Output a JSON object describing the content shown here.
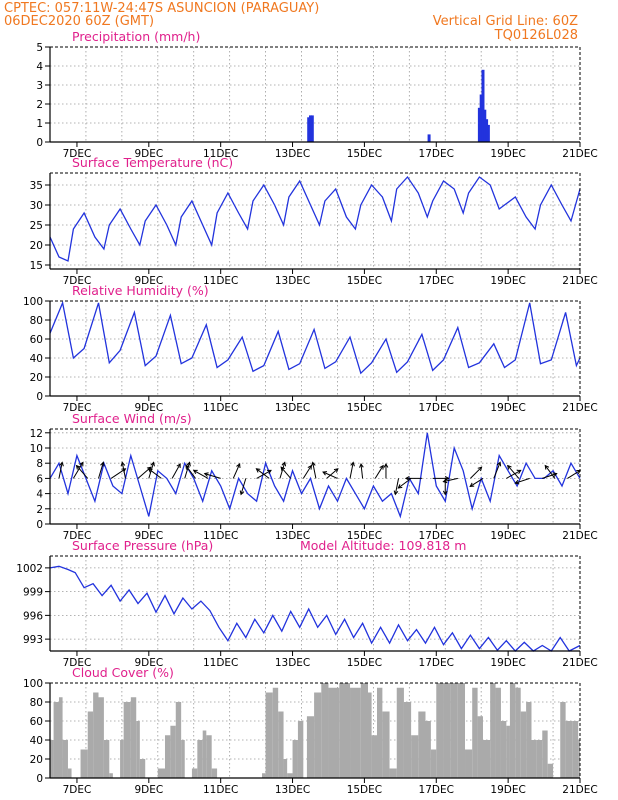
{
  "header": {
    "line1": "CPTEC:   057:11W-24:47S   ASUNCION (PARAGUAY)",
    "line2_left": "06DEC2020 60Z (GMT)",
    "line2_right": "Vertical Grid Line: 60Z",
    "line3_right": "TQ0126L028"
  },
  "colors": {
    "series": "#2233dd",
    "cloud_fill": "#aaaaaa",
    "header": "#f07820",
    "title": "#e0208c"
  },
  "chart_data": [
    {
      "id": "precip",
      "type": "bar",
      "title": "Precipitation (mm/h)",
      "x_unit": "day of December 2020",
      "xlim": [
        6.25,
        21
      ],
      "ylim": [
        0,
        5
      ],
      "yticks": [
        "0",
        "1",
        "2",
        "3",
        "4",
        "5"
      ],
      "xticks": [
        "7DEC",
        "9DEC",
        "11DEC",
        "13DEC",
        "15DEC",
        "17DEC",
        "19DEC",
        "21DEC"
      ],
      "x": [
        13.45,
        13.5,
        13.55,
        16.8,
        18.2,
        18.25,
        18.3,
        18.35,
        18.4,
        18.45
      ],
      "values": [
        1.3,
        1.4,
        1.4,
        0.4,
        1.8,
        2.5,
        3.8,
        1.7,
        1.2,
        0.9
      ]
    },
    {
      "id": "temp",
      "type": "line",
      "title": "Surface Temperature (nC)",
      "x_unit": "day of December 2020",
      "xlim": [
        6.25,
        21
      ],
      "ylim": [
        14,
        38
      ],
      "yticks": [
        "15",
        "20",
        "25",
        "30",
        "35"
      ],
      "xticks": [
        "7DEC",
        "9DEC",
        "11DEC",
        "13DEC",
        "15DEC",
        "17DEC",
        "19DEC",
        "21DEC"
      ],
      "x": [
        6.25,
        6.5,
        6.75,
        6.9,
        7.2,
        7.5,
        7.75,
        7.9,
        8.2,
        8.5,
        8.75,
        8.9,
        9.2,
        9.5,
        9.75,
        9.9,
        10.2,
        10.5,
        10.75,
        10.9,
        11.2,
        11.5,
        11.75,
        11.9,
        12.2,
        12.5,
        12.75,
        12.9,
        13.2,
        13.5,
        13.75,
        13.9,
        14.2,
        14.5,
        14.75,
        14.9,
        15.2,
        15.5,
        15.75,
        15.9,
        16.2,
        16.5,
        16.75,
        16.9,
        17.2,
        17.5,
        17.75,
        17.9,
        18.2,
        18.5,
        18.75,
        18.9,
        19.2,
        19.5,
        19.75,
        19.9,
        20.2,
        20.5,
        20.75,
        21
      ],
      "values": [
        22,
        17,
        16,
        24,
        28,
        22,
        19,
        25,
        29,
        24,
        20,
        26,
        30,
        25,
        20,
        27,
        31,
        25,
        20,
        28,
        33,
        28,
        24,
        31,
        35,
        30,
        25,
        32,
        36,
        30,
        25,
        31,
        34,
        27,
        24,
        30,
        35,
        32,
        26,
        34,
        37,
        33,
        27,
        31,
        36,
        34,
        28,
        33,
        37,
        35,
        29,
        30,
        32,
        27,
        24,
        30,
        35,
        30,
        26,
        34
      ]
    },
    {
      "id": "rh",
      "type": "line",
      "title": "Relative Humidity (%)",
      "x_unit": "day of December 2020",
      "xlim": [
        6.25,
        21
      ],
      "ylim": [
        0,
        100
      ],
      "yticks": [
        "0",
        "20",
        "40",
        "60",
        "80",
        "100"
      ],
      "xticks": [
        "7DEC",
        "9DEC",
        "11DEC",
        "13DEC",
        "15DEC",
        "17DEC",
        "19DEC",
        "21DEC"
      ],
      "x": [
        6.25,
        6.6,
        6.9,
        7.2,
        7.6,
        7.9,
        8.2,
        8.6,
        8.9,
        9.2,
        9.6,
        9.9,
        10.2,
        10.6,
        10.9,
        11.2,
        11.6,
        11.9,
        12.2,
        12.6,
        12.9,
        13.2,
        13.6,
        13.9,
        14.2,
        14.6,
        14.9,
        15.2,
        15.6,
        15.9,
        16.2,
        16.6,
        16.9,
        17.2,
        17.6,
        17.9,
        18.2,
        18.6,
        18.9,
        19.2,
        19.6,
        19.9,
        20.2,
        20.6,
        20.9,
        21
      ],
      "values": [
        66,
        98,
        40,
        50,
        98,
        35,
        48,
        88,
        32,
        42,
        85,
        34,
        40,
        75,
        30,
        38,
        62,
        26,
        32,
        68,
        28,
        34,
        70,
        29,
        36,
        62,
        24,
        35,
        60,
        25,
        36,
        65,
        27,
        38,
        72,
        30,
        35,
        55,
        30,
        38,
        98,
        34,
        38,
        88,
        32,
        40
      ]
    },
    {
      "id": "wind",
      "type": "line",
      "title": "Surface Wind (m/s)",
      "x_unit": "day of December 2020",
      "xlim": [
        6.25,
        21
      ],
      "ylim": [
        0,
        12.5
      ],
      "yticks": [
        "0",
        "2",
        "4",
        "6",
        "8",
        "10",
        "12"
      ],
      "xticks": [
        "7DEC",
        "9DEC",
        "11DEC",
        "13DEC",
        "15DEC",
        "17DEC",
        "19DEC",
        "21DEC"
      ],
      "x": [
        6.25,
        6.5,
        6.75,
        7.0,
        7.25,
        7.5,
        7.75,
        8.0,
        8.25,
        8.5,
        8.75,
        9.0,
        9.25,
        9.5,
        9.75,
        10.0,
        10.25,
        10.5,
        10.75,
        11.0,
        11.25,
        11.5,
        11.75,
        12.0,
        12.25,
        12.5,
        12.75,
        13.0,
        13.25,
        13.5,
        13.75,
        14.0,
        14.25,
        14.5,
        14.75,
        15.0,
        15.25,
        15.5,
        15.75,
        16.0,
        16.25,
        16.5,
        16.75,
        17.0,
        17.25,
        17.5,
        17.75,
        18.0,
        18.25,
        18.5,
        18.75,
        19.0,
        19.25,
        19.5,
        19.75,
        20.0,
        20.25,
        20.5,
        20.75,
        21.0
      ],
      "values": [
        6,
        8,
        4,
        9,
        6,
        3,
        8,
        5,
        4,
        9,
        5,
        1,
        7,
        6,
        4,
        8,
        6,
        3,
        7,
        5,
        2,
        6,
        4,
        3,
        8,
        5,
        3,
        7,
        4,
        6,
        2,
        5,
        3,
        6,
        4,
        2,
        5,
        3,
        4,
        1,
        6,
        4,
        12,
        5,
        3,
        10,
        7,
        2,
        6,
        3,
        9,
        7,
        5,
        8,
        6,
        6,
        7,
        5,
        8,
        6
      ],
      "arrows_note": "wind direction vectors",
      "arrows": [
        [
          6.5,
          0.2,
          1
        ],
        [
          6.9,
          0.6,
          1
        ],
        [
          7.3,
          -0.7,
          0.8
        ],
        [
          7.6,
          0.3,
          1
        ],
        [
          7.95,
          0.9,
          0.6
        ],
        [
          8.35,
          -0.2,
          1
        ],
        [
          8.7,
          0.8,
          0.7
        ],
        [
          9.0,
          0.3,
          1
        ],
        [
          9.35,
          -0.8,
          0.6
        ],
        [
          9.65,
          0.5,
          0.9
        ],
        [
          10.0,
          0.3,
          1
        ],
        [
          10.3,
          -0.6,
          0.8
        ],
        [
          10.65,
          -0.9,
          0.5
        ],
        [
          11.0,
          -1,
          0.3
        ],
        [
          11.35,
          0.4,
          0.9
        ],
        [
          11.7,
          -0.3,
          -1
        ],
        [
          12.0,
          0.9,
          0.5
        ],
        [
          12.35,
          -0.8,
          0.6
        ],
        [
          12.65,
          0.3,
          1
        ],
        [
          12.95,
          -0.6,
          0.7
        ],
        [
          13.3,
          0.5,
          0.8
        ],
        [
          13.65,
          -0.2,
          1
        ],
        [
          13.95,
          0.7,
          0.6
        ],
        [
          14.25,
          -0.9,
          0.4
        ],
        [
          14.6,
          0.2,
          1
        ],
        [
          14.95,
          -0.1,
          0.9
        ],
        [
          15.3,
          0.5,
          0.8
        ],
        [
          15.6,
          0,
          0.9
        ],
        [
          15.95,
          -0.2,
          -1
        ],
        [
          16.3,
          -0.8,
          -0.6
        ],
        [
          16.6,
          -1,
          0
        ],
        [
          16.9,
          1,
          0
        ],
        [
          17.25,
          0,
          -1
        ],
        [
          17.6,
          -0.9,
          -0.2
        ],
        [
          17.95,
          0.7,
          0.7
        ],
        [
          18.3,
          -0.8,
          -0.5
        ],
        [
          18.6,
          0.4,
          1
        ],
        [
          18.95,
          0.9,
          0.5
        ],
        [
          19.3,
          -0.7,
          0.8
        ],
        [
          19.6,
          -0.9,
          -0.3
        ],
        [
          19.95,
          0.9,
          0.3
        ],
        [
          20.3,
          -0.6,
          0.8
        ],
        [
          20.65,
          0.8,
          0.5
        ]
      ]
    },
    {
      "id": "pressure",
      "type": "line",
      "title": "Surface Pressure (hPa)",
      "annotation": "Model Altitude: 109.818 m",
      "x_unit": "day of December 2020",
      "xlim": [
        6.25,
        21
      ],
      "ylim": [
        991.5,
        1003.5
      ],
      "yticks": [
        "993",
        "996",
        "999",
        "1002"
      ],
      "xticks": [
        "7DEC",
        "9DEC",
        "11DEC",
        "13DEC",
        "15DEC",
        "17DEC",
        "19DEC",
        "21DEC"
      ],
      "x": [
        6.25,
        6.5,
        6.75,
        6.95,
        7.2,
        7.45,
        7.7,
        7.95,
        8.2,
        8.45,
        8.7,
        8.95,
        9.2,
        9.45,
        9.7,
        9.95,
        10.2,
        10.45,
        10.7,
        10.95,
        11.2,
        11.45,
        11.7,
        11.95,
        12.2,
        12.45,
        12.7,
        12.95,
        13.2,
        13.45,
        13.7,
        13.95,
        14.2,
        14.45,
        14.7,
        14.95,
        15.2,
        15.45,
        15.7,
        15.95,
        16.2,
        16.45,
        16.7,
        16.95,
        17.2,
        17.45,
        17.7,
        17.95,
        18.2,
        18.45,
        18.7,
        18.95,
        19.2,
        19.45,
        19.7,
        19.95,
        20.2,
        20.45,
        20.7,
        21.0
      ],
      "values": [
        1002,
        1002.2,
        1001.8,
        1001.4,
        999.5,
        1000,
        998.5,
        999.8,
        997.8,
        999.2,
        997.5,
        998.8,
        996.4,
        998.5,
        996.2,
        998.2,
        996.8,
        997.8,
        996.6,
        994.5,
        992.8,
        995,
        993.2,
        995.5,
        993.8,
        996,
        994,
        996.5,
        994.5,
        996.8,
        994.5,
        996,
        993.6,
        995.5,
        993.2,
        995,
        992.5,
        994.5,
        992.5,
        994.8,
        992.8,
        994.2,
        992.5,
        994.5,
        992.3,
        993.8,
        991.8,
        993.5,
        991.8,
        993.2,
        991.6,
        992.8,
        991.5,
        992.6,
        991.3,
        992.2,
        991.2,
        993.2,
        991.2,
        992.2
      ]
    },
    {
      "id": "cloud",
      "type": "area",
      "title": "Cloud Cover (%)",
      "x_unit": "day of December 2020",
      "xlim": [
        6.25,
        21
      ],
      "ylim": [
        0,
        100
      ],
      "yticks": [
        "0",
        "20",
        "40",
        "60",
        "80",
        "100"
      ],
      "xticks": [
        "7DEC",
        "9DEC",
        "11DEC",
        "13DEC",
        "15DEC",
        "17DEC",
        "19DEC",
        "21DEC"
      ],
      "x": [
        6.25,
        6.35,
        6.5,
        6.6,
        6.75,
        6.85,
        6.95,
        7.1,
        7.3,
        7.45,
        7.6,
        7.75,
        7.9,
        8.0,
        8.1,
        8.2,
        8.3,
        8.5,
        8.65,
        8.75,
        8.9,
        9.0,
        9.1,
        9.25,
        9.45,
        9.6,
        9.75,
        9.9,
        10.0,
        10.1,
        10.2,
        10.35,
        10.5,
        10.6,
        10.75,
        10.9,
        11.0,
        11.2,
        11.5,
        11.8,
        12.0,
        12.15,
        12.25,
        12.45,
        12.6,
        12.75,
        12.85,
        13.0,
        13.15,
        13.3,
        13.4,
        13.6,
        13.8,
        14.0,
        14.3,
        14.6,
        14.9,
        15.1,
        15.2,
        15.35,
        15.5,
        15.7,
        15.9,
        16.1,
        16.3,
        16.5,
        16.7,
        16.85,
        17.0,
        17.2,
        17.4,
        17.6,
        17.8,
        18.0,
        18.15,
        18.3,
        18.5,
        18.65,
        18.8,
        18.95,
        19.05,
        19.2,
        19.35,
        19.5,
        19.65,
        19.8,
        19.95,
        20.1,
        20.25,
        20.45,
        20.6,
        20.8,
        20.95,
        21.0
      ],
      "values": [
        40,
        80,
        85,
        40,
        10,
        0,
        0,
        30,
        70,
        90,
        85,
        40,
        5,
        0,
        0,
        40,
        80,
        85,
        60,
        20,
        0,
        0,
        0,
        10,
        45,
        55,
        80,
        40,
        0,
        0,
        10,
        40,
        50,
        45,
        10,
        0,
        0,
        0,
        0,
        0,
        0,
        5,
        90,
        95,
        70,
        20,
        5,
        40,
        60,
        0,
        65,
        90,
        100,
        95,
        100,
        95,
        100,
        90,
        45,
        95,
        70,
        10,
        95,
        80,
        45,
        70,
        60,
        30,
        100,
        100,
        100,
        100,
        30,
        95,
        65,
        40,
        100,
        95,
        60,
        55,
        100,
        95,
        70,
        80,
        40,
        40,
        50,
        15,
        0,
        80,
        60,
        60,
        40,
        0
      ]
    }
  ]
}
